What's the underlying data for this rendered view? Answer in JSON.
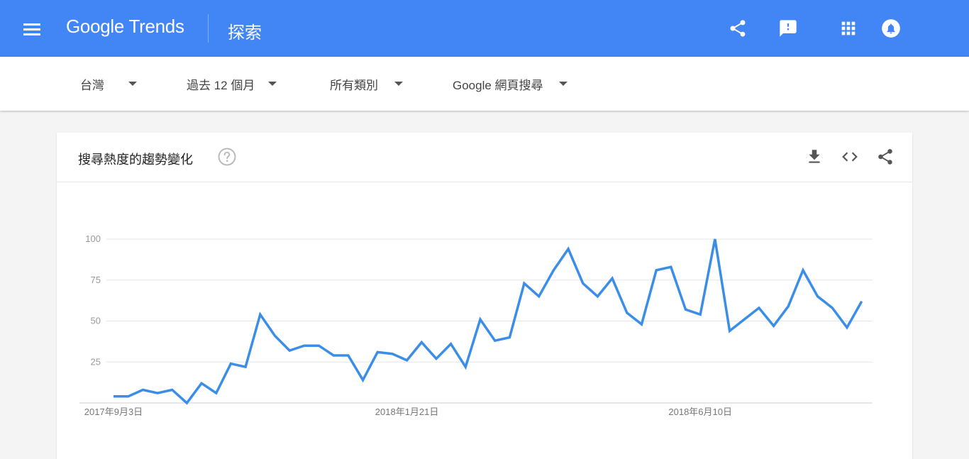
{
  "header": {
    "logo": "Google Trends",
    "page_label": "探索",
    "icons": [
      "menu-icon",
      "share-icon",
      "feedback-icon",
      "apps-icon",
      "notifications-icon"
    ]
  },
  "filters": {
    "region": "台灣",
    "time_range": "過去 12 個月",
    "category": "所有類別",
    "search_type": "Google 網頁搜尋"
  },
  "card": {
    "title": "搜尋熱度的趨勢變化",
    "icons": [
      "help-icon",
      "download-icon",
      "embed-icon",
      "share-icon"
    ]
  },
  "colors": {
    "topbar": "#4285f4",
    "line": "#4285f4"
  },
  "chart_data": {
    "type": "line",
    "title": "",
    "xlabel": "",
    "ylabel": "",
    "ylim": [
      0,
      100
    ],
    "yticks": [
      25,
      50,
      75,
      100
    ],
    "grid": true,
    "x_tick_labels": [
      {
        "index": 0,
        "label": "2017年9月3日"
      },
      {
        "index": 20,
        "label": "2018年1月21日"
      },
      {
        "index": 40,
        "label": "2018年6月10日"
      }
    ],
    "series": [
      {
        "values": [
          4,
          4,
          8,
          6,
          8,
          0,
          12,
          6,
          24,
          22,
          54,
          41,
          32,
          35,
          35,
          29,
          29,
          14,
          31,
          30,
          26,
          37,
          27,
          36,
          22,
          51,
          38,
          40,
          73,
          65,
          81,
          94,
          73,
          65,
          76,
          55,
          48,
          81,
          83,
          57,
          54,
          100,
          44,
          51,
          58,
          47,
          59,
          81,
          65,
          58,
          46,
          62
        ]
      }
    ]
  }
}
